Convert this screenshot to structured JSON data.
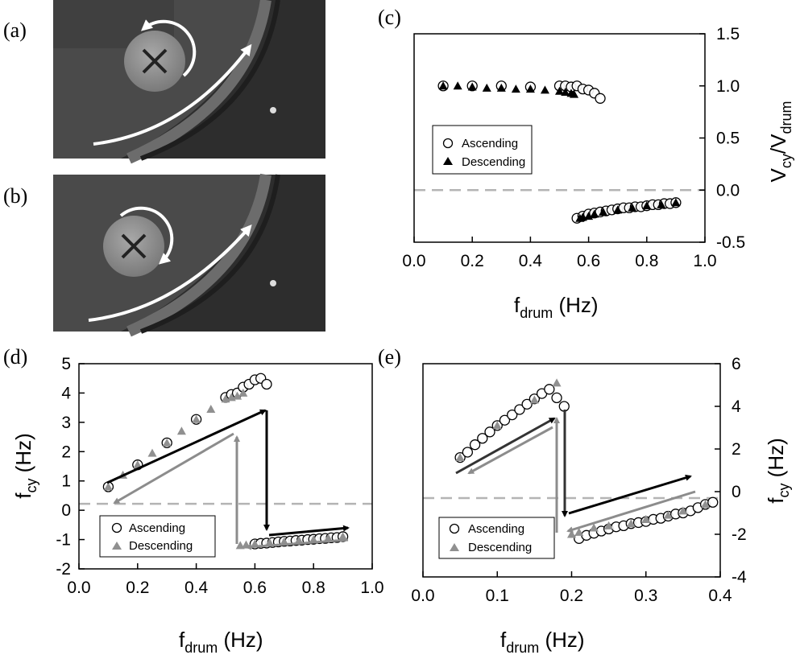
{
  "panel_labels": [
    "(a)",
    "(b)",
    "(c)",
    "(d)",
    "(e)"
  ],
  "colors": {
    "ascending_edge": "#000000",
    "descending_fill": "#909090",
    "zero_line": "#b4b4b4",
    "arrow_black": "#000000",
    "arrow_gray": "#8c8c8c"
  },
  "chart_data": [
    {
      "id": "c",
      "type": "scatter",
      "xlabel": "f_drum (Hz)",
      "ylabel": "V_cy/V_drum",
      "xlim": [
        0,
        1.0
      ],
      "ylim": [
        -0.5,
        1.5
      ],
      "xticks": [
        "0.0",
        "0.2",
        "0.4",
        "0.6",
        "0.8",
        "1.0"
      ],
      "yticks": [
        "-0.5",
        "0.0",
        "0.5",
        "1.0",
        "1.5"
      ],
      "y_axis_side": "right",
      "zero_line": 0.0,
      "legend": [
        "Ascending",
        "Descending"
      ],
      "series": [
        {
          "name": "Ascending",
          "marker": "open-circle",
          "x": [
            0.1,
            0.2,
            0.3,
            0.4,
            0.5,
            0.52,
            0.54,
            0.56,
            0.58,
            0.6,
            0.62,
            0.64,
            0.56,
            0.58,
            0.6,
            0.62,
            0.64,
            0.66,
            0.68,
            0.7,
            0.72,
            0.74,
            0.76,
            0.78,
            0.8,
            0.82,
            0.84,
            0.86,
            0.88,
            0.9
          ],
          "y": [
            1.0,
            1.0,
            1.0,
            0.99,
            1.0,
            1.0,
            0.99,
            1.0,
            0.97,
            0.96,
            0.93,
            0.88,
            -0.27,
            -0.25,
            -0.23,
            -0.22,
            -0.21,
            -0.2,
            -0.19,
            -0.18,
            -0.17,
            -0.17,
            -0.16,
            -0.16,
            -0.15,
            -0.14,
            -0.14,
            -0.13,
            -0.13,
            -0.12
          ]
        },
        {
          "name": "Descending",
          "marker": "filled-triangle",
          "x": [
            0.1,
            0.15,
            0.2,
            0.25,
            0.3,
            0.35,
            0.4,
            0.45,
            0.5,
            0.52,
            0.54,
            0.55,
            0.57,
            0.58,
            0.6,
            0.62,
            0.65,
            0.7,
            0.75,
            0.8,
            0.85,
            0.9
          ],
          "y": [
            1.0,
            1.0,
            0.99,
            0.98,
            0.98,
            0.97,
            0.97,
            0.96,
            0.95,
            0.94,
            0.93,
            0.92,
            -0.27,
            -0.26,
            -0.25,
            -0.23,
            -0.21,
            -0.19,
            -0.17,
            -0.15,
            -0.14,
            -0.12
          ]
        }
      ]
    },
    {
      "id": "d",
      "type": "scatter",
      "xlabel": "f_drum (Hz)",
      "ylabel": "f_cy (Hz)",
      "xlim": [
        0,
        1.0
      ],
      "ylim": [
        -2,
        5
      ],
      "xticks": [
        "0.0",
        "0.2",
        "0.4",
        "0.6",
        "0.8",
        "1.0"
      ],
      "yticks": [
        "-2",
        "-1",
        "0",
        "1",
        "2",
        "3",
        "4",
        "5"
      ],
      "y_axis_side": "left",
      "zero_line": 0.22,
      "legend": [
        "Ascending",
        "Descending"
      ],
      "series": [
        {
          "name": "Ascending",
          "marker": "open-circle",
          "x": [
            0.1,
            0.2,
            0.3,
            0.4,
            0.5,
            0.52,
            0.54,
            0.56,
            0.58,
            0.6,
            0.62,
            0.64,
            0.6,
            0.62,
            0.64,
            0.66,
            0.68,
            0.7,
            0.72,
            0.74,
            0.76,
            0.78,
            0.8,
            0.82,
            0.84,
            0.86,
            0.88,
            0.9
          ],
          "y": [
            0.8,
            1.55,
            2.3,
            3.1,
            3.85,
            3.95,
            4.0,
            4.2,
            4.3,
            4.45,
            4.5,
            4.3,
            -1.15,
            -1.13,
            -1.12,
            -1.1,
            -1.08,
            -1.06,
            -1.05,
            -1.03,
            -1.02,
            -1.0,
            -0.99,
            -0.97,
            -0.96,
            -0.94,
            -0.93,
            -0.9
          ]
        },
        {
          "name": "Descending",
          "marker": "filled-triangle",
          "x": [
            0.1,
            0.15,
            0.2,
            0.25,
            0.3,
            0.35,
            0.4,
            0.45,
            0.5,
            0.52,
            0.54,
            0.56,
            0.55,
            0.57,
            0.6,
            0.65,
            0.7,
            0.75,
            0.8,
            0.85,
            0.9
          ],
          "y": [
            0.8,
            1.2,
            1.55,
            1.95,
            2.3,
            2.7,
            3.1,
            3.45,
            3.8,
            3.85,
            3.9,
            4.0,
            -1.2,
            -1.18,
            -1.15,
            -1.1,
            -1.07,
            -1.03,
            -1.0,
            -0.95,
            -0.9
          ]
        }
      ]
    },
    {
      "id": "e",
      "type": "scatter",
      "xlabel": "f_drum (Hz)",
      "ylabel": "f_cy (Hz)",
      "xlim": [
        0,
        0.4
      ],
      "ylim": [
        -4,
        6
      ],
      "xticks": [
        "0.0",
        "0.1",
        "0.2",
        "0.3",
        "0.4"
      ],
      "yticks": [
        "-4",
        "-2",
        "0",
        "2",
        "4",
        "6"
      ],
      "y_axis_side": "right",
      "zero_line": -0.3,
      "legend": [
        "Ascending",
        "Descending"
      ],
      "series": [
        {
          "name": "Ascending",
          "marker": "open-circle",
          "x": [
            0.05,
            0.06,
            0.07,
            0.08,
            0.09,
            0.1,
            0.11,
            0.12,
            0.13,
            0.14,
            0.15,
            0.16,
            0.17,
            0.18,
            0.19,
            0.21,
            0.22,
            0.23,
            0.24,
            0.25,
            0.26,
            0.27,
            0.28,
            0.29,
            0.3,
            0.31,
            0.32,
            0.33,
            0.34,
            0.35,
            0.36,
            0.37,
            0.38,
            0.39
          ],
          "y": [
            1.6,
            1.85,
            2.2,
            2.5,
            2.8,
            3.1,
            3.35,
            3.6,
            3.85,
            4.1,
            4.35,
            4.6,
            4.8,
            4.4,
            4.0,
            -2.2,
            -2.05,
            -1.95,
            -1.85,
            -1.75,
            -1.65,
            -1.6,
            -1.5,
            -1.45,
            -1.4,
            -1.3,
            -1.25,
            -1.15,
            -1.05,
            -1.0,
            -0.9,
            -0.75,
            -0.6,
            -0.5
          ]
        },
        {
          "name": "Descending",
          "marker": "filled-triangle",
          "x": [
            0.05,
            0.1,
            0.15,
            0.18,
            0.2,
            0.21,
            0.23,
            0.25,
            0.28,
            0.3,
            0.33,
            0.35,
            0.38
          ],
          "y": [
            1.6,
            3.1,
            4.3,
            5.1,
            -2.0,
            -1.9,
            -1.7,
            -1.6,
            -1.5,
            -1.3,
            -1.1,
            -0.9,
            -0.6
          ]
        }
      ]
    }
  ]
}
